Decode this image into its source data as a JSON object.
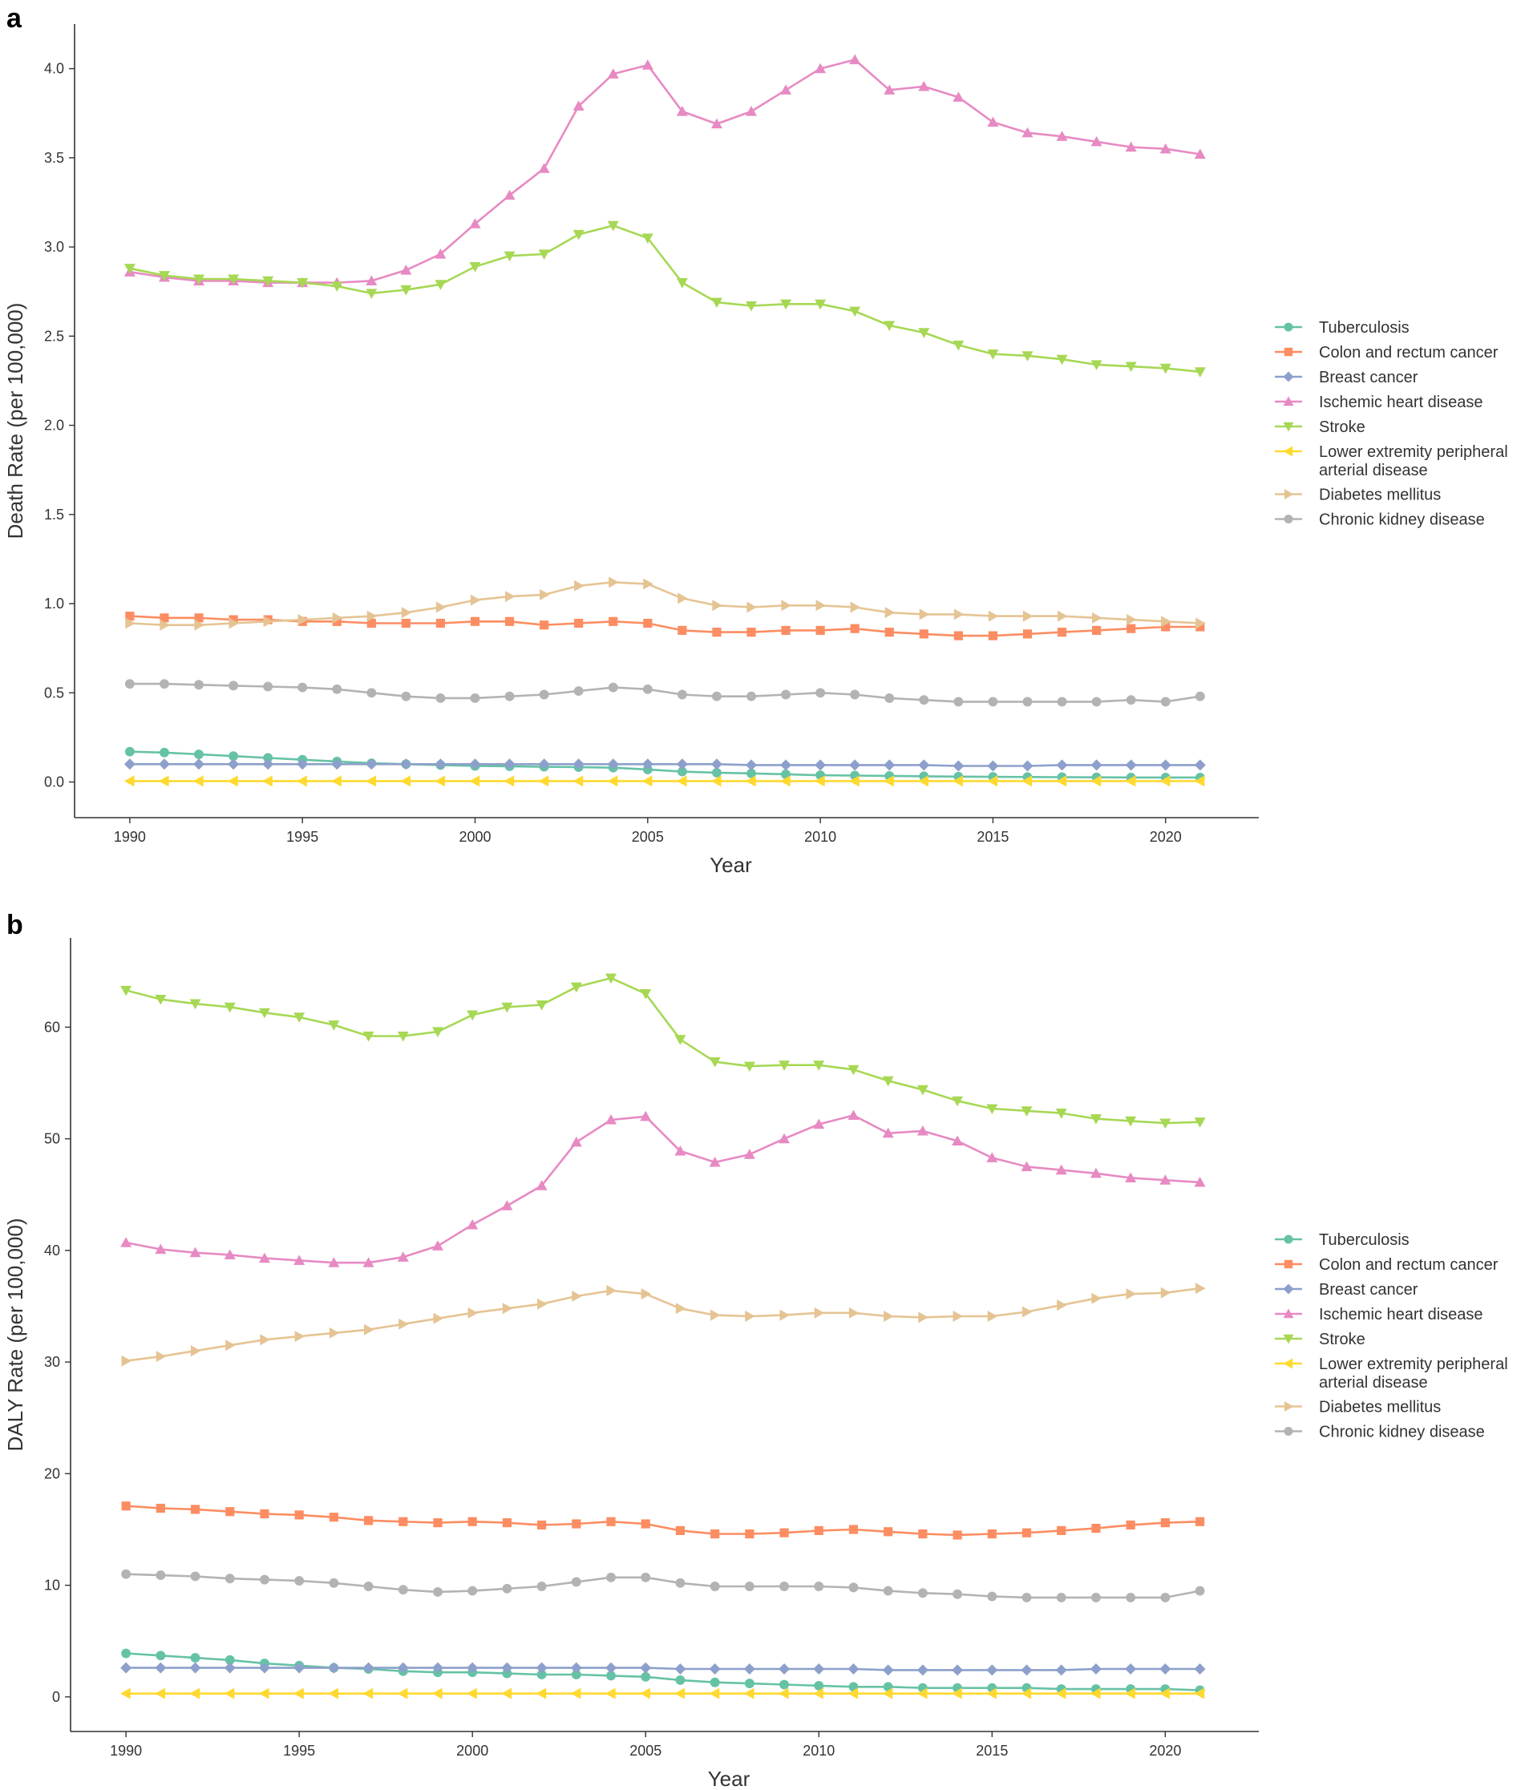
{
  "figure": {
    "panel_a": "a",
    "panel_b": "b"
  },
  "chart_data": [
    {
      "type": "line",
      "panel": "a",
      "title": "",
      "xlabel": "Year",
      "ylabel": "Death Rate (per 100,000)",
      "xlim": [
        1988.4,
        2022.7
      ],
      "ylim": [
        -0.2,
        4.25
      ],
      "xticks": [
        1990,
        1995,
        2000,
        2005,
        2010,
        2015,
        2020
      ],
      "yticks": [
        0.0,
        0.5,
        1.0,
        1.5,
        2.0,
        2.5,
        3.0,
        3.5,
        4.0
      ],
      "ytick_labels": [
        "0.0",
        "0.5",
        "1.0",
        "1.5",
        "2.0",
        "2.5",
        "3.0",
        "3.5",
        "4.0"
      ],
      "legend_position": "right-center",
      "x": [
        1990,
        1991,
        1992,
        1993,
        1994,
        1995,
        1996,
        1997,
        1998,
        1999,
        2000,
        2001,
        2002,
        2003,
        2004,
        2005,
        2006,
        2007,
        2008,
        2009,
        2010,
        2011,
        2012,
        2013,
        2014,
        2015,
        2016,
        2017,
        2018,
        2019,
        2020,
        2021
      ],
      "series": [
        {
          "name": "Tuberculosis",
          "legend_label": [
            "Tuberculosis"
          ],
          "color": "#66c2a5",
          "marker": "circle",
          "values": [
            0.17,
            0.165,
            0.155,
            0.145,
            0.135,
            0.125,
            0.115,
            0.105,
            0.1,
            0.095,
            0.09,
            0.088,
            0.085,
            0.083,
            0.08,
            0.07,
            0.058,
            0.052,
            0.048,
            0.043,
            0.038,
            0.036,
            0.034,
            0.032,
            0.03,
            0.029,
            0.028,
            0.027,
            0.026,
            0.025,
            0.025,
            0.025
          ]
        },
        {
          "name": "Colon and rectum cancer",
          "legend_label": [
            "Colon and rectum cancer"
          ],
          "color": "#fc8d62",
          "marker": "square",
          "values": [
            0.93,
            0.92,
            0.92,
            0.91,
            0.91,
            0.9,
            0.9,
            0.89,
            0.89,
            0.89,
            0.9,
            0.9,
            0.88,
            0.89,
            0.9,
            0.89,
            0.85,
            0.84,
            0.84,
            0.85,
            0.85,
            0.86,
            0.84,
            0.83,
            0.82,
            0.82,
            0.83,
            0.84,
            0.85,
            0.86,
            0.87,
            0.87
          ]
        },
        {
          "name": "Breast cancer",
          "legend_label": [
            "Breast cancer"
          ],
          "color": "#8da0cb",
          "marker": "diamond",
          "values": [
            0.1,
            0.1,
            0.1,
            0.1,
            0.1,
            0.1,
            0.1,
            0.1,
            0.1,
            0.1,
            0.1,
            0.1,
            0.1,
            0.1,
            0.1,
            0.1,
            0.1,
            0.1,
            0.095,
            0.095,
            0.095,
            0.095,
            0.095,
            0.095,
            0.09,
            0.09,
            0.09,
            0.095,
            0.095,
            0.095,
            0.095,
            0.095
          ]
        },
        {
          "name": "Ischemic heart disease",
          "legend_label": [
            "Ischemic heart disease"
          ],
          "color": "#e78ac3",
          "marker": "triangle-up",
          "values": [
            2.86,
            2.83,
            2.81,
            2.81,
            2.8,
            2.8,
            2.8,
            2.81,
            2.87,
            2.96,
            3.13,
            3.29,
            3.44,
            3.79,
            3.97,
            4.02,
            3.76,
            3.69,
            3.76,
            3.88,
            4.0,
            4.05,
            3.88,
            3.9,
            3.84,
            3.7,
            3.64,
            3.62,
            3.59,
            3.56,
            3.55,
            3.52
          ]
        },
        {
          "name": "Stroke",
          "legend_label": [
            "Stroke"
          ],
          "color": "#a6d854",
          "marker": "triangle-down",
          "values": [
            2.88,
            2.84,
            2.82,
            2.82,
            2.81,
            2.8,
            2.78,
            2.74,
            2.76,
            2.79,
            2.89,
            2.95,
            2.96,
            3.07,
            3.12,
            3.05,
            2.8,
            2.69,
            2.67,
            2.68,
            2.68,
            2.64,
            2.56,
            2.52,
            2.45,
            2.4,
            2.39,
            2.37,
            2.34,
            2.33,
            2.32,
            2.3
          ]
        },
        {
          "name": "Lower extremity peripheral arterial disease",
          "legend_label": [
            "Lower extremity peripheral",
            "arterial disease"
          ],
          "color": "#ffd92f",
          "marker": "triangle-left",
          "values": [
            0.005,
            0.005,
            0.005,
            0.005,
            0.005,
            0.005,
            0.005,
            0.005,
            0.005,
            0.005,
            0.005,
            0.005,
            0.005,
            0.005,
            0.005,
            0.005,
            0.005,
            0.005,
            0.005,
            0.005,
            0.005,
            0.005,
            0.005,
            0.005,
            0.005,
            0.005,
            0.005,
            0.005,
            0.005,
            0.005,
            0.005,
            0.005
          ]
        },
        {
          "name": "Diabetes mellitus",
          "legend_label": [
            "Diabetes mellitus"
          ],
          "color": "#e5c494",
          "marker": "triangle-right",
          "values": [
            0.89,
            0.88,
            0.88,
            0.89,
            0.9,
            0.91,
            0.92,
            0.93,
            0.95,
            0.98,
            1.02,
            1.04,
            1.05,
            1.1,
            1.12,
            1.11,
            1.03,
            0.99,
            0.98,
            0.99,
            0.99,
            0.98,
            0.95,
            0.94,
            0.94,
            0.93,
            0.93,
            0.93,
            0.92,
            0.91,
            0.9,
            0.89
          ]
        },
        {
          "name": "Chronic kidney disease",
          "legend_label": [
            "Chronic kidney disease"
          ],
          "color": "#b3b3b3",
          "marker": "circle",
          "values": [
            0.55,
            0.55,
            0.545,
            0.54,
            0.535,
            0.53,
            0.52,
            0.5,
            0.48,
            0.47,
            0.47,
            0.48,
            0.49,
            0.51,
            0.53,
            0.52,
            0.49,
            0.48,
            0.48,
            0.49,
            0.5,
            0.49,
            0.47,
            0.46,
            0.45,
            0.45,
            0.45,
            0.45,
            0.45,
            0.46,
            0.45,
            0.48
          ]
        }
      ]
    },
    {
      "type": "line",
      "panel": "b",
      "title": "",
      "xlabel": "Year",
      "ylabel": "DALY Rate (per 100,000)",
      "xlim": [
        1988.4,
        2022.7
      ],
      "ylim": [
        -3.1,
        68.0
      ],
      "xticks": [
        1990,
        1995,
        2000,
        2005,
        2010,
        2015,
        2020
      ],
      "yticks": [
        0,
        10,
        20,
        30,
        40,
        50,
        60
      ],
      "ytick_labels": [
        "0",
        "10",
        "20",
        "30",
        "40",
        "50",
        "60"
      ],
      "legend_position": "right-center",
      "x": [
        1990,
        1991,
        1992,
        1993,
        1994,
        1995,
        1996,
        1997,
        1998,
        1999,
        2000,
        2001,
        2002,
        2003,
        2004,
        2005,
        2006,
        2007,
        2008,
        2009,
        2010,
        2011,
        2012,
        2013,
        2014,
        2015,
        2016,
        2017,
        2018,
        2019,
        2020,
        2021
      ],
      "series": [
        {
          "name": "Tuberculosis",
          "legend_label": [
            "Tuberculosis"
          ],
          "color": "#66c2a5",
          "marker": "circle",
          "values": [
            3.9,
            3.7,
            3.5,
            3.3,
            3.0,
            2.8,
            2.6,
            2.5,
            2.3,
            2.2,
            2.2,
            2.1,
            2.0,
            2.0,
            1.9,
            1.8,
            1.5,
            1.3,
            1.2,
            1.1,
            1.0,
            0.9,
            0.9,
            0.8,
            0.8,
            0.8,
            0.8,
            0.7,
            0.7,
            0.7,
            0.7,
            0.6
          ]
        },
        {
          "name": "Colon and rectum cancer",
          "legend_label": [
            "Colon and rectum cancer"
          ],
          "color": "#fc8d62",
          "marker": "square",
          "values": [
            17.1,
            16.9,
            16.8,
            16.6,
            16.4,
            16.3,
            16.1,
            15.8,
            15.7,
            15.6,
            15.7,
            15.6,
            15.4,
            15.5,
            15.7,
            15.5,
            14.9,
            14.6,
            14.6,
            14.7,
            14.9,
            15.0,
            14.8,
            14.6,
            14.5,
            14.6,
            14.7,
            14.9,
            15.1,
            15.4,
            15.6,
            15.7
          ]
        },
        {
          "name": "Breast cancer",
          "legend_label": [
            "Breast cancer"
          ],
          "color": "#8da0cb",
          "marker": "diamond",
          "values": [
            2.6,
            2.6,
            2.6,
            2.6,
            2.6,
            2.6,
            2.6,
            2.6,
            2.6,
            2.6,
            2.6,
            2.6,
            2.6,
            2.6,
            2.6,
            2.6,
            2.5,
            2.5,
            2.5,
            2.5,
            2.5,
            2.5,
            2.4,
            2.4,
            2.4,
            2.4,
            2.4,
            2.4,
            2.5,
            2.5,
            2.5,
            2.5
          ]
        },
        {
          "name": "Ischemic heart disease",
          "legend_label": [
            "Ischemic heart disease"
          ],
          "color": "#e78ac3",
          "marker": "triangle-up",
          "values": [
            40.7,
            40.1,
            39.8,
            39.6,
            39.3,
            39.1,
            38.9,
            38.9,
            39.4,
            40.4,
            42.3,
            44.0,
            45.8,
            49.7,
            51.7,
            52.0,
            48.9,
            47.9,
            48.6,
            50.0,
            51.3,
            52.1,
            50.5,
            50.7,
            49.8,
            48.3,
            47.5,
            47.2,
            46.9,
            46.5,
            46.3,
            46.1
          ]
        },
        {
          "name": "Stroke",
          "legend_label": [
            "Stroke"
          ],
          "color": "#a6d854",
          "marker": "triangle-down",
          "values": [
            63.3,
            62.5,
            62.1,
            61.8,
            61.3,
            60.9,
            60.2,
            59.2,
            59.2,
            59.6,
            61.1,
            61.8,
            62.0,
            63.6,
            64.4,
            63.0,
            58.9,
            56.9,
            56.5,
            56.6,
            56.6,
            56.2,
            55.2,
            54.4,
            53.4,
            52.7,
            52.5,
            52.3,
            51.8,
            51.6,
            51.4,
            51.5
          ]
        },
        {
          "name": "Lower extremity peripheral arterial disease",
          "legend_label": [
            "Lower extremity peripheral",
            "arterial disease"
          ],
          "color": "#ffd92f",
          "marker": "triangle-left",
          "values": [
            0.3,
            0.3,
            0.3,
            0.3,
            0.3,
            0.3,
            0.3,
            0.3,
            0.3,
            0.3,
            0.3,
            0.3,
            0.3,
            0.3,
            0.3,
            0.3,
            0.3,
            0.3,
            0.3,
            0.3,
            0.3,
            0.3,
            0.3,
            0.3,
            0.3,
            0.3,
            0.3,
            0.3,
            0.3,
            0.3,
            0.3,
            0.3
          ]
        },
        {
          "name": "Diabetes mellitus",
          "legend_label": [
            "Diabetes mellitus"
          ],
          "color": "#e5c494",
          "marker": "triangle-right",
          "values": [
            30.1,
            30.5,
            31.0,
            31.5,
            32.0,
            32.3,
            32.6,
            32.9,
            33.4,
            33.9,
            34.4,
            34.8,
            35.2,
            35.9,
            36.4,
            36.1,
            34.8,
            34.2,
            34.1,
            34.2,
            34.4,
            34.4,
            34.1,
            34.0,
            34.1,
            34.1,
            34.5,
            35.1,
            35.7,
            36.1,
            36.2,
            36.6
          ]
        },
        {
          "name": "Chronic kidney disease",
          "legend_label": [
            "Chronic kidney disease"
          ],
          "color": "#b3b3b3",
          "marker": "circle",
          "values": [
            11.0,
            10.9,
            10.8,
            10.6,
            10.5,
            10.4,
            10.2,
            9.9,
            9.6,
            9.4,
            9.5,
            9.7,
            9.9,
            10.3,
            10.7,
            10.7,
            10.2,
            9.9,
            9.9,
            9.9,
            9.9,
            9.8,
            9.5,
            9.3,
            9.2,
            9.0,
            8.9,
            8.9,
            8.9,
            8.9,
            8.9,
            9.5
          ]
        }
      ]
    }
  ]
}
